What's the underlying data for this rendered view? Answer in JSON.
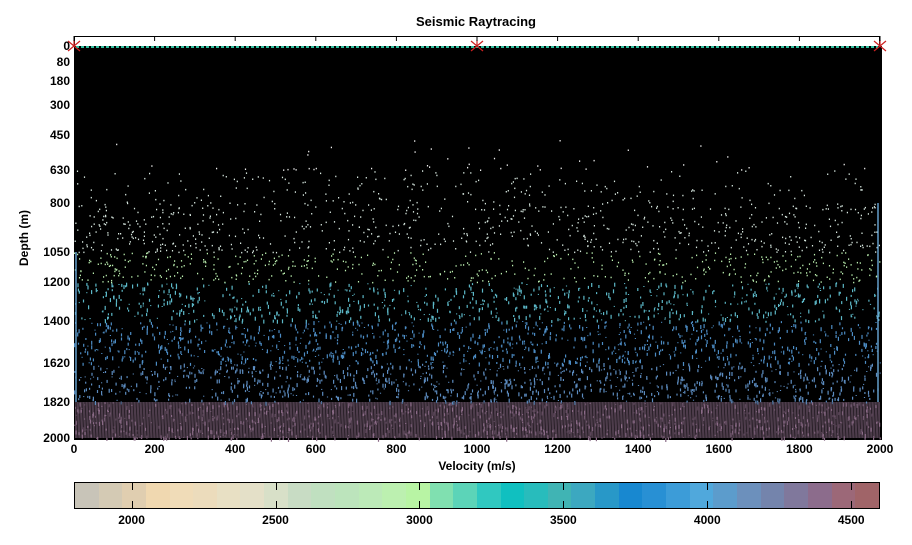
{
  "chart_data": {
    "type": "heatmap",
    "title": "Seismic Raytracing",
    "xlabel": "Velocity (m/s)",
    "ylabel": "Depth (m)",
    "xlim": [
      0,
      2000
    ],
    "ylim": [
      2000,
      0
    ],
    "x_ticks": [
      0,
      200,
      400,
      600,
      800,
      1000,
      1200,
      1400,
      1600,
      1800,
      2000
    ],
    "y_ticks": [
      0,
      80,
      180,
      300,
      450,
      630,
      800,
      1050,
      1200,
      1400,
      1620,
      1820,
      2000
    ],
    "layer_boundaries_depth": [
      0,
      80,
      180,
      300,
      450,
      630,
      800,
      1050,
      1200,
      1400,
      1620,
      1820,
      2000
    ],
    "sources_x": [
      0,
      1000,
      2000
    ],
    "receivers_depth": 0,
    "background": "#000000",
    "colorbar": {
      "label_ticks": [
        2000,
        2500,
        3000,
        3500,
        4000,
        4500
      ],
      "range": [
        1800,
        4600
      ],
      "orientation": "horizontal",
      "colors": [
        "#c8c4b8",
        "#d4cab4",
        "#e0ceb0",
        "#f0d8b0",
        "#f0dcb8",
        "#ecdcbc",
        "#e8e0c4",
        "#e4e0c8",
        "#d8e0c8",
        "#c8dcc4",
        "#c0e0c0",
        "#bce4bc",
        "#bceab8",
        "#bcf0b0",
        "#b8f4a4",
        "#80e0b0",
        "#5cd4b8",
        "#30c8c0",
        "#10c0c0",
        "#28bcbc",
        "#40b4b4",
        "#3ca8c0",
        "#2898c8",
        "#1888d0",
        "#2890d4",
        "#3c9cd8",
        "#50a8dc",
        "#5c9ccc",
        "#6c90bc",
        "#7484ac",
        "#80789c",
        "#8c6c8c",
        "#9c6878",
        "#a06468"
      ]
    },
    "ray_color_by_depth": [
      {
        "depth_from": 0,
        "depth_to": 630,
        "color": "#f0f0f0"
      },
      {
        "depth_from": 630,
        "depth_to": 1050,
        "color": "#d8e8e0"
      },
      {
        "depth_from": 1050,
        "depth_to": 1200,
        "color": "#bcf0b0"
      },
      {
        "depth_from": 1200,
        "depth_to": 1400,
        "color": "#5cb8c8"
      },
      {
        "depth_from": 1400,
        "depth_to": 1620,
        "color": "#4c8cc4"
      },
      {
        "depth_from": 1620,
        "depth_to": 1820,
        "color": "#5c8cc0"
      },
      {
        "depth_from": 1820,
        "depth_to": 2000,
        "color": "#8c6c88"
      }
    ]
  },
  "markers": {
    "source_color": "#cc2020",
    "receiver_color": "#30c0a0"
  }
}
